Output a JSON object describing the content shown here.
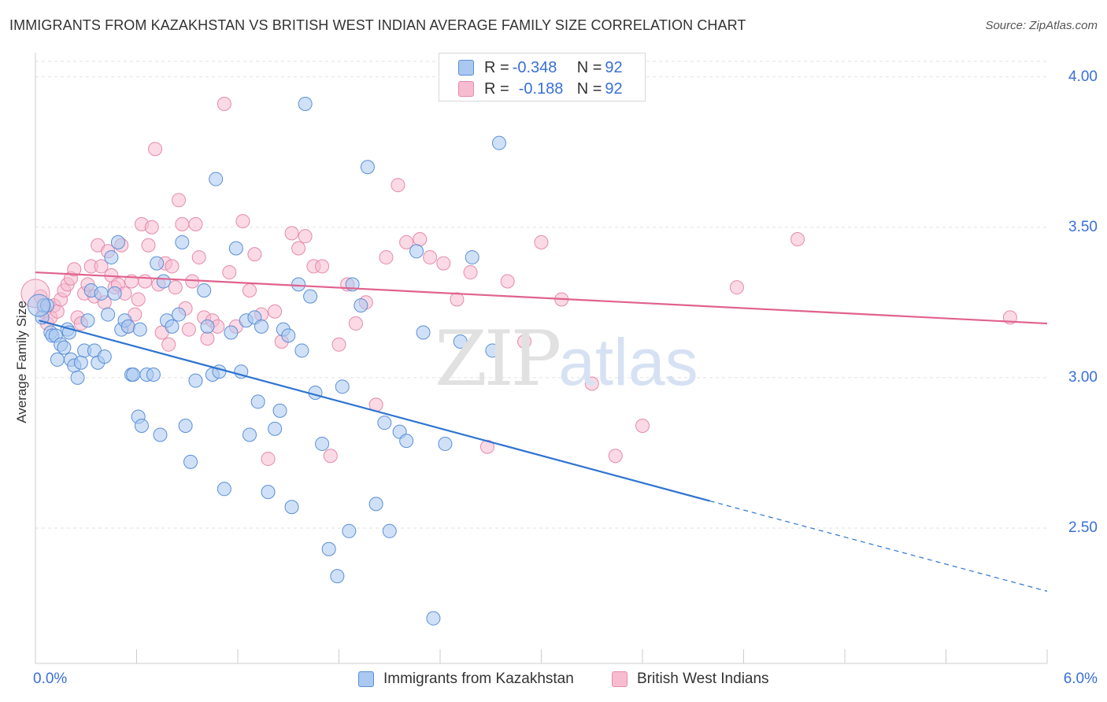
{
  "title": "IMMIGRANTS FROM KAZAKHSTAN VS BRITISH WEST INDIAN AVERAGE FAMILY SIZE CORRELATION CHART",
  "source": "Source: ZipAtlas.com",
  "watermark": {
    "zip": "ZIP",
    "atlas": "atlas"
  },
  "legend_top": {
    "rows": [
      {
        "r_label": "R = ",
        "r_value": "-0.348",
        "n_label": "N = ",
        "n_value": "92"
      },
      {
        "r_label": "R = ",
        "r_value": "-0.188",
        "n_label": "N = ",
        "n_value": "92"
      }
    ]
  },
  "legend_bottom": {
    "items": [
      {
        "label": "Immigrants from Kazakhstan"
      },
      {
        "label": "British West Indians"
      }
    ]
  },
  "colors": {
    "blue_fill": "#aac8f0",
    "blue_stroke": "#5b8fd6",
    "blue_line": "#2f74d0",
    "pink_fill": "#f7bcd0",
    "pink_stroke": "#e58aab",
    "pink_line": "#e0628e",
    "tick_text": "#3a6fd8",
    "grid": "#e2e2e2"
  },
  "chart_data": {
    "type": "scatter",
    "title": "IMMIGRANTS FROM KAZAKHSTAN VS BRITISH WEST INDIAN AVERAGE FAMILY SIZE CORRELATION CHART",
    "xlabel": "",
    "ylabel": "Average Family Size",
    "xlim": [
      0,
      6
    ],
    "ylim": [
      2.05,
      4.08
    ],
    "x_tick_labels": [
      "0.0%",
      "6.0%"
    ],
    "y_ticks": [
      2.5,
      3.0,
      3.5,
      4.0
    ],
    "y_tick_labels": [
      "2.50",
      "3.00",
      "3.50",
      "4.00"
    ],
    "grid": true,
    "legend_position": "top-center",
    "series": [
      {
        "name": "Immigrants from Kazakhstan",
        "color": "#aac8f0",
        "trend": {
          "x_start": 0.02,
          "y_start": 3.19,
          "x_end": 4.0,
          "y_end": 2.59,
          "dashed_to_x": 6.0,
          "dashed_to_y": 2.29
        },
        "points": [
          [
            0.04,
            3.2
          ],
          [
            0.05,
            3.24
          ],
          [
            0.07,
            3.24
          ],
          [
            0.09,
            3.15
          ],
          [
            0.1,
            3.14
          ],
          [
            0.12,
            3.14
          ],
          [
            0.13,
            3.06
          ],
          [
            0.15,
            3.11
          ],
          [
            0.17,
            3.1
          ],
          [
            0.19,
            3.16
          ],
          [
            0.2,
            3.15
          ],
          [
            0.21,
            3.06
          ],
          [
            0.23,
            3.04
          ],
          [
            0.25,
            3.0
          ],
          [
            0.27,
            3.05
          ],
          [
            0.29,
            3.09
          ],
          [
            0.31,
            3.19
          ],
          [
            0.33,
            3.29
          ],
          [
            0.35,
            3.09
          ],
          [
            0.37,
            3.05
          ],
          [
            0.39,
            3.28
          ],
          [
            0.41,
            3.07
          ],
          [
            0.43,
            3.21
          ],
          [
            0.45,
            3.4
          ],
          [
            0.47,
            3.28
          ],
          [
            0.49,
            3.45
          ],
          [
            0.51,
            3.16
          ],
          [
            0.53,
            3.19
          ],
          [
            0.55,
            3.17
          ],
          [
            0.57,
            3.01
          ],
          [
            0.58,
            3.01
          ],
          [
            0.61,
            2.87
          ],
          [
            0.62,
            3.16
          ],
          [
            0.63,
            2.84
          ],
          [
            0.66,
            3.01
          ],
          [
            0.7,
            3.01
          ],
          [
            0.72,
            3.38
          ],
          [
            0.74,
            2.81
          ],
          [
            0.76,
            3.32
          ],
          [
            0.78,
            3.19
          ],
          [
            0.81,
            3.17
          ],
          [
            0.85,
            3.21
          ],
          [
            0.87,
            3.45
          ],
          [
            0.89,
            2.84
          ],
          [
            0.92,
            2.72
          ],
          [
            0.95,
            2.99
          ],
          [
            1.0,
            3.29
          ],
          [
            1.02,
            3.17
          ],
          [
            1.05,
            3.01
          ],
          [
            1.07,
            3.66
          ],
          [
            1.09,
            3.02
          ],
          [
            1.12,
            2.63
          ],
          [
            1.16,
            3.15
          ],
          [
            1.19,
            3.43
          ],
          [
            1.22,
            3.02
          ],
          [
            1.25,
            3.19
          ],
          [
            1.27,
            2.81
          ],
          [
            1.3,
            3.2
          ],
          [
            1.32,
            2.92
          ],
          [
            1.34,
            3.17
          ],
          [
            1.38,
            2.62
          ],
          [
            1.42,
            2.83
          ],
          [
            1.45,
            2.89
          ],
          [
            1.47,
            3.16
          ],
          [
            1.5,
            3.14
          ],
          [
            1.52,
            2.57
          ],
          [
            1.56,
            3.31
          ],
          [
            1.58,
            3.09
          ],
          [
            1.6,
            3.91
          ],
          [
            1.63,
            3.27
          ],
          [
            1.66,
            2.95
          ],
          [
            1.7,
            2.78
          ],
          [
            1.74,
            2.43
          ],
          [
            1.79,
            2.34
          ],
          [
            1.82,
            2.97
          ],
          [
            1.86,
            2.49
          ],
          [
            1.88,
            3.31
          ],
          [
            1.93,
            3.24
          ],
          [
            1.97,
            3.7
          ],
          [
            2.02,
            2.58
          ],
          [
            2.07,
            2.85
          ],
          [
            2.1,
            2.49
          ],
          [
            2.16,
            2.82
          ],
          [
            2.2,
            2.79
          ],
          [
            2.26,
            3.42
          ],
          [
            2.3,
            3.15
          ],
          [
            2.36,
            2.2
          ],
          [
            2.43,
            2.78
          ],
          [
            2.52,
            3.12
          ],
          [
            2.59,
            3.4
          ],
          [
            2.71,
            3.09
          ],
          [
            2.75,
            3.78
          ]
        ]
      },
      {
        "name": "British West Indians",
        "color": "#f7bcd0",
        "trend": {
          "x_start": 0.0,
          "y_start": 3.35,
          "x_end": 6.0,
          "y_end": 3.18
        },
        "points": [
          [
            0.03,
            3.27
          ],
          [
            0.05,
            3.22
          ],
          [
            0.07,
            3.18
          ],
          [
            0.09,
            3.2
          ],
          [
            0.11,
            3.24
          ],
          [
            0.13,
            3.22
          ],
          [
            0.15,
            3.26
          ],
          [
            0.17,
            3.29
          ],
          [
            0.19,
            3.31
          ],
          [
            0.21,
            3.33
          ],
          [
            0.23,
            3.36
          ],
          [
            0.25,
            3.2
          ],
          [
            0.27,
            3.18
          ],
          [
            0.29,
            3.28
          ],
          [
            0.31,
            3.31
          ],
          [
            0.33,
            3.37
          ],
          [
            0.35,
            3.27
          ],
          [
            0.37,
            3.44
          ],
          [
            0.39,
            3.37
          ],
          [
            0.41,
            3.25
          ],
          [
            0.43,
            3.42
          ],
          [
            0.45,
            3.34
          ],
          [
            0.47,
            3.3
          ],
          [
            0.49,
            3.31
          ],
          [
            0.51,
            3.44
          ],
          [
            0.53,
            3.28
          ],
          [
            0.55,
            3.17
          ],
          [
            0.57,
            3.32
          ],
          [
            0.59,
            3.21
          ],
          [
            0.61,
            3.26
          ],
          [
            0.63,
            3.51
          ],
          [
            0.65,
            3.32
          ],
          [
            0.67,
            3.44
          ],
          [
            0.69,
            3.5
          ],
          [
            0.71,
            3.76
          ],
          [
            0.73,
            3.31
          ],
          [
            0.75,
            3.15
          ],
          [
            0.77,
            3.38
          ],
          [
            0.79,
            3.11
          ],
          [
            0.81,
            3.37
          ],
          [
            0.83,
            3.3
          ],
          [
            0.85,
            3.59
          ],
          [
            0.87,
            3.51
          ],
          [
            0.89,
            3.23
          ],
          [
            0.91,
            3.16
          ],
          [
            0.93,
            3.32
          ],
          [
            0.95,
            3.51
          ],
          [
            0.97,
            3.4
          ],
          [
            1.0,
            3.2
          ],
          [
            1.02,
            3.13
          ],
          [
            1.05,
            3.19
          ],
          [
            1.08,
            3.17
          ],
          [
            1.12,
            3.91
          ],
          [
            1.15,
            3.35
          ],
          [
            1.19,
            3.17
          ],
          [
            1.23,
            3.52
          ],
          [
            1.27,
            3.29
          ],
          [
            1.3,
            3.41
          ],
          [
            1.34,
            3.21
          ],
          [
            1.38,
            2.73
          ],
          [
            1.42,
            3.22
          ],
          [
            1.46,
            3.12
          ],
          [
            1.52,
            3.48
          ],
          [
            1.56,
            3.43
          ],
          [
            1.6,
            3.47
          ],
          [
            1.65,
            3.37
          ],
          [
            1.7,
            3.37
          ],
          [
            1.75,
            2.74
          ],
          [
            1.8,
            3.11
          ],
          [
            1.85,
            3.31
          ],
          [
            1.9,
            3.18
          ],
          [
            1.96,
            3.25
          ],
          [
            2.02,
            2.91
          ],
          [
            2.08,
            3.4
          ],
          [
            2.15,
            3.64
          ],
          [
            2.2,
            3.45
          ],
          [
            2.28,
            3.46
          ],
          [
            2.34,
            3.4
          ],
          [
            2.42,
            3.38
          ],
          [
            2.5,
            3.26
          ],
          [
            2.58,
            3.35
          ],
          [
            2.68,
            2.77
          ],
          [
            2.8,
            3.32
          ],
          [
            2.9,
            3.12
          ],
          [
            3.0,
            3.45
          ],
          [
            3.12,
            3.26
          ],
          [
            3.3,
            2.98
          ],
          [
            3.44,
            2.74
          ],
          [
            3.6,
            2.84
          ],
          [
            4.16,
            3.3
          ],
          [
            4.52,
            3.46
          ],
          [
            5.78,
            3.2
          ]
        ]
      }
    ]
  }
}
